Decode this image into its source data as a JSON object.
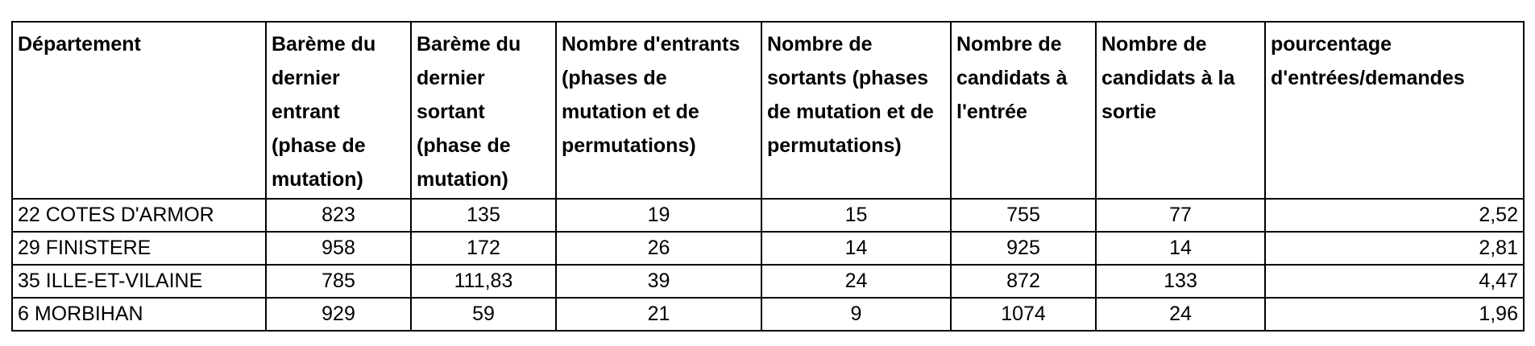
{
  "table": {
    "headers": [
      "Département",
      "Barème du dernier entrant (phase de mutation)",
      "Barème du dernier sortant (phase de mutation)",
      "Nombre d'entrants (phases de mutation et de permutations)",
      "Nombre de sortants (phases de mutation et de permutations)",
      "Nombre de candidats à l'entrée",
      "Nombre de candidats à la sortie",
      "pourcentage d'entrées/demandes"
    ],
    "rows": [
      [
        "22 COTES D'ARMOR",
        "823",
        "135",
        "19",
        "15",
        "755",
        "77",
        "2,52"
      ],
      [
        "29 FINISTERE",
        "958",
        "172",
        "26",
        "14",
        "925",
        "14",
        "2,81"
      ],
      [
        "35 ILLE-ET-VILAINE",
        "785",
        "111,83",
        "39",
        "24",
        "872",
        "133",
        "4,47"
      ],
      [
        "6 MORBIHAN",
        "929",
        "59",
        "21",
        "9",
        "1074",
        "24",
        "1,96"
      ]
    ]
  }
}
